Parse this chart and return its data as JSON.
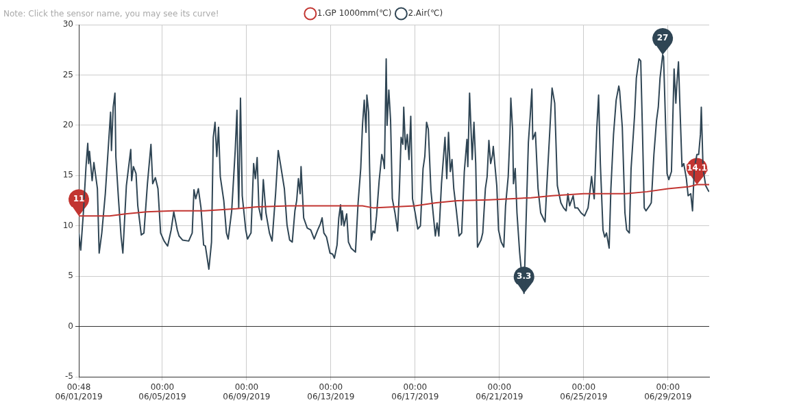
{
  "chart_data": {
    "type": "line",
    "legend": "top",
    "marker": "none",
    "line_style": "solid",
    "grid": true,
    "annotations": [
      "Note: Click the sensor name, you may see its curve!",
      {
        "text": "11",
        "x": "2019-06-01T00:48",
        "y": 11
      },
      {
        "text": "14.1",
        "x": "2019-06-30T09:00",
        "y": 14.1
      },
      {
        "text": "27",
        "x": "2019-06-28T18:00",
        "y": 27
      },
      {
        "text": "3.3",
        "x": "2019-06-22T04:00",
        "y": 3.3
      }
    ],
    "xlim": [
      "2019-06-01T00:48",
      "2019-06-30T23:00"
    ],
    "xticks": [
      {
        "value": "2019-06-01T00:48",
        "label": "00:48 06/01/2019"
      },
      {
        "value": "2019-06-05T00:00",
        "label": "00:00 06/05/2019"
      },
      {
        "value": "2019-06-09T00:00",
        "label": "00:00 06/09/2019"
      },
      {
        "value": "2019-06-13T00:00",
        "label": "00:00 06/13/2019"
      },
      {
        "value": "2019-06-17T00:00",
        "label": "00:00 06/17/2019"
      },
      {
        "value": "2019-06-21T00:00",
        "label": "00:00 06/21/2019"
      },
      {
        "value": "2019-06-25T00:00",
        "label": "00:00 06/25/2019"
      },
      {
        "value": "2019-06-29T00:00",
        "label": "00:00 06/29/2019"
      }
    ],
    "ylim": [
      -5,
      30
    ],
    "yticks": [
      -5,
      0,
      5,
      10,
      15,
      20,
      25,
      30
    ],
    "series": [
      {
        "name": "1.GP 1000mm(℃)",
        "color": "#c23531",
        "x": [
          "2019-06-01T00:48",
          "2019-06-02T12:00",
          "2019-06-03T06:00",
          "2019-06-04T06:00",
          "2019-06-05T12:00",
          "2019-06-07T00:00",
          "2019-06-08T12:00",
          "2019-06-09T12:00",
          "2019-06-11T00:00",
          "2019-06-14T12:00",
          "2019-06-15T00:00",
          "2019-06-16T00:00",
          "2019-06-17T00:00",
          "2019-06-18T00:00",
          "2019-06-19T00:00",
          "2019-06-20T12:00",
          "2019-06-21T12:00",
          "2019-06-22T12:00",
          "2019-06-23T12:00",
          "2019-06-25T00:00",
          "2019-06-27T00:00",
          "2019-06-28T00:00",
          "2019-06-29T00:00",
          "2019-06-30T00:00",
          "2019-06-30T09:00",
          "2019-06-30T23:00"
        ],
        "values": [
          11.0,
          11.0,
          11.2,
          11.4,
          11.5,
          11.5,
          11.7,
          11.9,
          12.0,
          12.0,
          11.8,
          11.9,
          12.0,
          12.3,
          12.5,
          12.6,
          12.7,
          12.8,
          13.0,
          13.2,
          13.2,
          13.4,
          13.7,
          13.9,
          14.1,
          14.1
        ]
      },
      {
        "name": "2.Air(℃)",
        "color": "#2f4554",
        "x": [
          "2019-06-01T00:48",
          "2019-06-01T03:00",
          "2019-06-01T06:00",
          "2019-06-01T09:00",
          "2019-06-01T11:00",
          "2019-06-01T12:00",
          "2019-06-01T13:00",
          "2019-06-01T16:00",
          "2019-06-01T18:00",
          "2019-06-01T22:00",
          "2019-06-02T00:00",
          "2019-06-02T03:00",
          "2019-06-02T07:00",
          "2019-06-02T11:00",
          "2019-06-02T13:00",
          "2019-06-02T14:00",
          "2019-06-02T16:00",
          "2019-06-02T18:00",
          "2019-06-02T19:00",
          "2019-06-02T22:00",
          "2019-06-03T01:00",
          "2019-06-03T03:00",
          "2019-06-03T07:00",
          "2019-06-03T12:00",
          "2019-06-03T13:00",
          "2019-06-03T15:00",
          "2019-06-03T18:00",
          "2019-06-03T20:00",
          "2019-06-04T00:00",
          "2019-06-04T03:00",
          "2019-06-04T07:00",
          "2019-06-04T11:00",
          "2019-06-04T13:00",
          "2019-06-04T16:00",
          "2019-06-04T19:00",
          "2019-06-04T22:00",
          "2019-06-05T02:00",
          "2019-06-05T06:00",
          "2019-06-05T10:00",
          "2019-06-05T13:00",
          "2019-06-05T17:00",
          "2019-06-05T19:00",
          "2019-06-05T23:00",
          "2019-06-06T06:00",
          "2019-06-06T10:00",
          "2019-06-06T12:00",
          "2019-06-06T14:00",
          "2019-06-06T17:00",
          "2019-06-06T20:00",
          "2019-06-06T23:00",
          "2019-06-07T01:00",
          "2019-06-07T05:00",
          "2019-06-07T08:00",
          "2019-06-07T10:00",
          "2019-06-07T12:00",
          "2019-06-07T14:00",
          "2019-06-07T16:00",
          "2019-06-07T18:00",
          "2019-06-07T22:00",
          "2019-06-08T01:00",
          "2019-06-08T03:00",
          "2019-06-08T07:00",
          "2019-06-08T11:00",
          "2019-06-08T13:00",
          "2019-06-08T14:00",
          "2019-06-08T15:00",
          "2019-06-08T17:00",
          "2019-06-08T19:00",
          "2019-06-08T23:00",
          "2019-06-09T01:00",
          "2019-06-09T05:00",
          "2019-06-09T08:00",
          "2019-06-09T10:00",
          "2019-06-09T12:00",
          "2019-06-09T14:00",
          "2019-06-09T17:00",
          "2019-06-09T19:00",
          "2019-06-09T22:00",
          "2019-06-10T02:00",
          "2019-06-10T05:00",
          "2019-06-10T09:00",
          "2019-06-10T12:00",
          "2019-06-10T15:00",
          "2019-06-10T19:00",
          "2019-06-10T22:00",
          "2019-06-11T01:00",
          "2019-06-11T04:00",
          "2019-06-11T07:00",
          "2019-06-11T09:00",
          "2019-06-11T11:00",
          "2019-06-11T13:00",
          "2019-06-11T14:00",
          "2019-06-11T17:00",
          "2019-06-11T21:00",
          "2019-06-12T01:00",
          "2019-06-12T05:00",
          "2019-06-12T09:00",
          "2019-06-12T12:00",
          "2019-06-12T14:00",
          "2019-06-12T16:00",
          "2019-06-12T19:00",
          "2019-06-12T23:00",
          "2019-06-13T02:00",
          "2019-06-13T04:00",
          "2019-06-13T07:00",
          "2019-06-13T09:00",
          "2019-06-13T11:00",
          "2019-06-13T12:00",
          "2019-06-13T13:00",
          "2019-06-13T15:00",
          "2019-06-13T18:00",
          "2019-06-13T20:00",
          "2019-06-13T23:00",
          "2019-06-14T04:00",
          "2019-06-14T07:00",
          "2019-06-14T10:00",
          "2019-06-14T12:00",
          "2019-06-14T14:00",
          "2019-06-14T16:00",
          "2019-06-14T17:00",
          "2019-06-14T19:00",
          "2019-06-14T20:00",
          "2019-06-14T22:00",
          "2019-06-15T00:00",
          "2019-06-15T02:00",
          "2019-06-15T04:00",
          "2019-06-15T07:00",
          "2019-06-15T10:00",
          "2019-06-15T12:00",
          "2019-06-15T13:00",
          "2019-06-15T15:00",
          "2019-06-15T16:00",
          "2019-06-15T18:00",
          "2019-06-15T20:00",
          "2019-06-15T22:00",
          "2019-06-16T01:00",
          "2019-06-16T04:00",
          "2019-06-16T06:00",
          "2019-06-16T08:00",
          "2019-06-16T10:00",
          "2019-06-16T11:00",
          "2019-06-16T13:00",
          "2019-06-16T15:00",
          "2019-06-16T17:00",
          "2019-06-16T19:00",
          "2019-06-16T21:00",
          "2019-06-17T00:00",
          "2019-06-17T03:00",
          "2019-06-17T06:00",
          "2019-06-17T09:00",
          "2019-06-17T11:00",
          "2019-06-17T13:00",
          "2019-06-17T15:00",
          "2019-06-17T18:00",
          "2019-06-17T23:00",
          "2019-06-18T01:00",
          "2019-06-18T03:00",
          "2019-06-18T06:00",
          "2019-06-18T10:00",
          "2019-06-18T12:00",
          "2019-06-18T14:00",
          "2019-06-18T16:00",
          "2019-06-18T18:00",
          "2019-06-18T20:00",
          "2019-06-18T23:00",
          "2019-06-19T02:00",
          "2019-06-19T05:00",
          "2019-06-19T08:00",
          "2019-06-19T11:00",
          "2019-06-19T12:00",
          "2019-06-19T14:00",
          "2019-06-19T17:00",
          "2019-06-19T19:00",
          "2019-06-19T21:00",
          "2019-06-19T23:00",
          "2019-06-20T03:00",
          "2019-06-20T05:00",
          "2019-06-20T08:00",
          "2019-06-20T10:00",
          "2019-06-20T12:00",
          "2019-06-20T14:00",
          "2019-06-20T16:00",
          "2019-06-20T17:00",
          "2019-06-20T19:00",
          "2019-06-20T21:00",
          "2019-06-20T23:00",
          "2019-06-21T02:00",
          "2019-06-21T05:00",
          "2019-06-21T07:00",
          "2019-06-21T10:00",
          "2019-06-21T12:00",
          "2019-06-21T13:00",
          "2019-06-21T15:00",
          "2019-06-21T16:00",
          "2019-06-21T18:00",
          "2019-06-21T20:00",
          "2019-06-21T23:00",
          "2019-06-22T01:00",
          "2019-06-22T04:00",
          "2019-06-22T05:00",
          "2019-06-22T09:00",
          "2019-06-22T11:00",
          "2019-06-22T13:00",
          "2019-06-22T14:00",
          "2019-06-22T17:00",
          "2019-06-22T20:00",
          "2019-06-22T23:00",
          "2019-06-23T04:00",
          "2019-06-23T06:00",
          "2019-06-23T09:00",
          "2019-06-23T12:00",
          "2019-06-23T15:00",
          "2019-06-23T18:00",
          "2019-06-23T22:00",
          "2019-06-24T01:00",
          "2019-06-24T04:00",
          "2019-06-24T06:00",
          "2019-06-24T08:00",
          "2019-06-24T12:00",
          "2019-06-24T14:00",
          "2019-06-24T17:00",
          "2019-06-24T21:00",
          "2019-06-25T01:00",
          "2019-06-25T05:00",
          "2019-06-25T09:00",
          "2019-06-25T12:00",
          "2019-06-25T15:00",
          "2019-06-25T17:00",
          "2019-06-25T19:00",
          "2019-06-25T22:00",
          "2019-06-26T00:00",
          "2019-06-26T02:00",
          "2019-06-26T05:00",
          "2019-06-26T07:00",
          "2019-06-26T10:00",
          "2019-06-26T13:00",
          "2019-06-26T16:00",
          "2019-06-26T17:00",
          "2019-06-26T20:00",
          "2019-06-26T23:00",
          "2019-06-27T01:00",
          "2019-06-27T04:00",
          "2019-06-27T06:00",
          "2019-06-27T10:00",
          "2019-06-27T12:00",
          "2019-06-27T15:00",
          "2019-06-27T17:00",
          "2019-06-27T19:00",
          "2019-06-27T21:00",
          "2019-06-27T23:00",
          "2019-06-28T03:00",
          "2019-06-28T05:00",
          "2019-06-28T08:00",
          "2019-06-28T11:00",
          "2019-06-28T13:00",
          "2019-06-28T15:00",
          "2019-06-28T18:00",
          "2019-06-28T19:00",
          "2019-06-28T21:00",
          "2019-06-28T23:00",
          "2019-06-29T01:00",
          "2019-06-29T04:00",
          "2019-06-29T06:00",
          "2019-06-29T07:00",
          "2019-06-29T09:00",
          "2019-06-29T10:00",
          "2019-06-29T12:00",
          "2019-06-29T14:00",
          "2019-06-29T16:00",
          "2019-06-29T18:00",
          "2019-06-29T21:00",
          "2019-06-29T23:00",
          "2019-06-30T02:00",
          "2019-06-30T04:00",
          "2019-06-30T06:00",
          "2019-06-30T09:00",
          "2019-06-30T11:00",
          "2019-06-30T13:00",
          "2019-06-30T14:00",
          "2019-06-30T16:00",
          "2019-06-30T19:00",
          "2019-06-30T22:00",
          "2019-06-30T23:00"
        ],
        "values": [
          9.3,
          7.6,
          11.3,
          15.9,
          18.2,
          16.2,
          17.4,
          14.5,
          16.3,
          13.7,
          7.3,
          9.3,
          13.2,
          18.6,
          21.3,
          17.5,
          21.8,
          23.2,
          16.9,
          12.7,
          8.9,
          7.3,
          14.0,
          17.6,
          14.5,
          15.9,
          15.2,
          12.0,
          9.1,
          9.3,
          14.2,
          18.1,
          14.2,
          14.8,
          13.7,
          9.3,
          8.5,
          8.0,
          9.6,
          11.4,
          9.6,
          9.0,
          8.6,
          8.5,
          9.3,
          13.6,
          12.7,
          13.7,
          11.8,
          8.1,
          8.0,
          5.7,
          8.4,
          18.8,
          20.3,
          16.9,
          19.8,
          14.9,
          12.5,
          9.3,
          8.7,
          11.5,
          17.5,
          21.5,
          15.7,
          11.8,
          22.7,
          13.0,
          9.6,
          8.7,
          9.3,
          16.2,
          14.7,
          16.8,
          11.8,
          10.6,
          14.6,
          11.3,
          9.3,
          8.5,
          13.2,
          17.5,
          15.9,
          13.7,
          10.1,
          8.6,
          8.4,
          11.5,
          12.5,
          14.7,
          13.2,
          15.9,
          10.8,
          9.8,
          9.6,
          8.7,
          9.6,
          10.2,
          10.8,
          9.3,
          8.9,
          7.3,
          7.2,
          6.8,
          8.1,
          10.8,
          12.1,
          10.1,
          11.5,
          10.0,
          11.2,
          8.4,
          7.8,
          7.4,
          12.3,
          15.7,
          20.0,
          22.5,
          19.3,
          23.0,
          21.3,
          16.2,
          8.6,
          9.5,
          9.3,
          11.0,
          14.5,
          17.1,
          16.4,
          15.7,
          26.6,
          20.0,
          23.5,
          20.5,
          12.7,
          11.3,
          9.5,
          13.5,
          18.8,
          18.1,
          21.8,
          17.6,
          19.1,
          16.6,
          20.9,
          12.7,
          11.3,
          9.7,
          10.0,
          15.7,
          16.9,
          20.3,
          19.6,
          13.5,
          9.0,
          10.3,
          9.0,
          14.2,
          18.8,
          14.7,
          19.3,
          15.4,
          16.6,
          13.7,
          11.5,
          9.0,
          9.3,
          15.4,
          18.6,
          15.9,
          23.2,
          16.6,
          20.3,
          16.2,
          7.9,
          8.6,
          9.3,
          13.7,
          14.9,
          18.5,
          16.2,
          17.0,
          17.9,
          15.9,
          14.0,
          9.6,
          8.4,
          7.9,
          12.0,
          14.9,
          19.1,
          22.7,
          19.6,
          14.2,
          15.7,
          11.3,
          7.4,
          5.5,
          3.3,
          6.4,
          18.3,
          20.8,
          23.6,
          18.6,
          19.3,
          13.7,
          11.3,
          10.4,
          14.0,
          18.8,
          23.7,
          22.2,
          14.0,
          12.3,
          11.8,
          11.5,
          13.2,
          12.0,
          13.0,
          11.8,
          11.8,
          11.3,
          11.0,
          11.8,
          14.9,
          12.7,
          19.8,
          23.0,
          16.2,
          9.6,
          8.9,
          9.3,
          7.8,
          13.7,
          19.1,
          22.5,
          23.9,
          23.4,
          19.8,
          11.3,
          9.6,
          9.3,
          15.7,
          21.0,
          24.7,
          26.6,
          26.4,
          19.3,
          11.8,
          11.5,
          12.0,
          12.3,
          17.1,
          20.5,
          21.8,
          24.7,
          27,
          26.8,
          21.0,
          15.2,
          14.6,
          15.4,
          22.2,
          25.6,
          22.2,
          23.9,
          26.3,
          21.0,
          15.9,
          16.2,
          14.7,
          13.0,
          13.2,
          11.5,
          15.7,
          17.1,
          17.1,
          19.1,
          21.8,
          15.7,
          14.0,
          13.5,
          13.4
        ]
      }
    ]
  }
}
